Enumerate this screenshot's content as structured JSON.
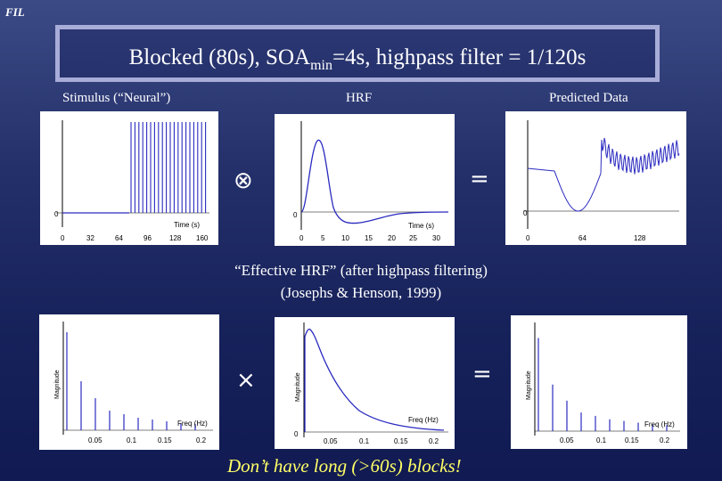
{
  "header": {
    "logo": "FIL"
  },
  "title": {
    "prefix": "Blocked (80s), SOA",
    "sub": "min",
    "suffix": "=4s, highpass filter = 1/120s"
  },
  "labels": {
    "stimulus": "Stimulus (“Neural”)",
    "hrf": "HRF",
    "predicted": "Predicted Data",
    "effective_line1": "“Effective HRF” (after highpass filtering)",
    "effective_line2": "(Josephs & Henson, 1999)",
    "bottom_note": "Don’t have long (>60s) blocks!"
  },
  "operators": {
    "convolve": "⊗",
    "equals1": "=",
    "times": "×",
    "equals2": "="
  },
  "colors": {
    "accent_yellow": "#ffff66",
    "plot_line": "#2a2ac0",
    "title_border": "#a8acd8"
  },
  "plots": {
    "stimulus": {
      "xlabel": "Time (s)",
      "xticks": [
        "0",
        "32",
        "64",
        "96",
        "128",
        "160"
      ],
      "ytick": "0"
    },
    "hrf": {
      "xlabel": "Time (s)",
      "xticks": [
        "0",
        "5",
        "10",
        "15",
        "20",
        "25",
        "30"
      ],
      "ytick": "0"
    },
    "predicted": {
      "xticks": [
        "0",
        "64",
        "128"
      ],
      "ytick": "0"
    },
    "stim_spectrum": {
      "xlabel": "Freq (Hz)",
      "ylabel": "Magnitude",
      "xticks": [
        "0.05",
        "0.1",
        "0.15",
        "0.2"
      ]
    },
    "hrf_spectrum": {
      "xlabel": "Freq (Hz)",
      "ylabel": "Magnitude",
      "xticks": [
        "0.05",
        "0.1",
        "0.15",
        "0.2"
      ],
      "ytick": "0"
    },
    "pred_spectrum": {
      "xlabel": "Freq (Hz)",
      "ylabel": "Magnitude",
      "xticks": [
        "0.05",
        "0.1",
        "0.15",
        "0.2"
      ]
    }
  }
}
